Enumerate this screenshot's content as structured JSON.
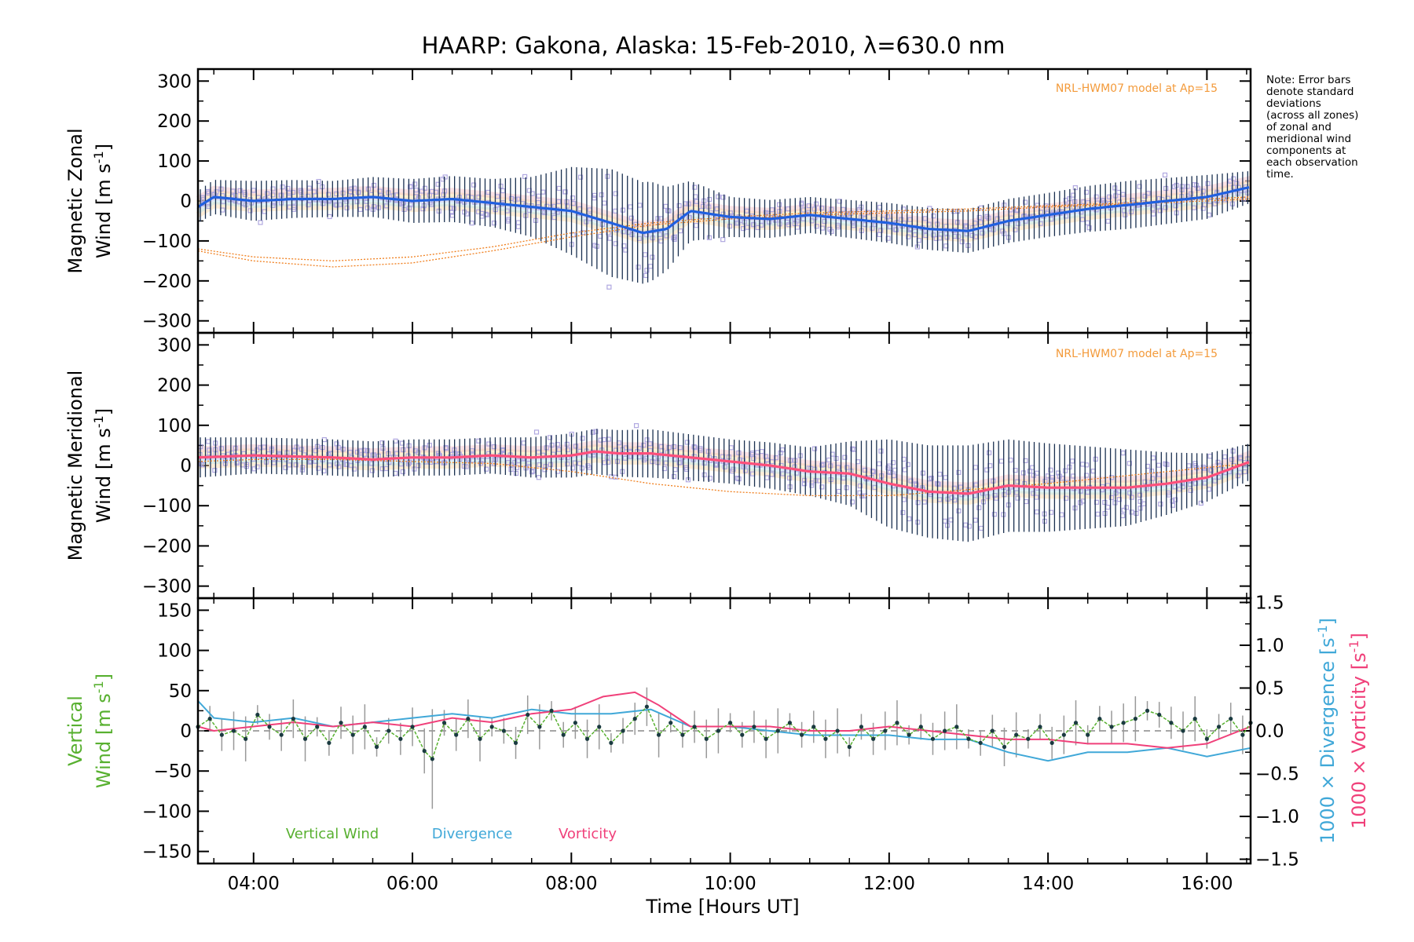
{
  "chart_data": {
    "title": "HAARP: Gakona,  Alaska: 15-Feb-2010, λ=630.0 nm",
    "xlabel": "Time [Hours UT]",
    "xlim": [
      3.3,
      16.55
    ],
    "x_ticks": [
      4,
      6,
      8,
      10,
      12,
      14,
      16
    ],
    "x_tick_labels": [
      "04:00",
      "06:00",
      "08:00",
      "10:00",
      "12:00",
      "14:00",
      "16:00"
    ],
    "note": [
      "Note: Error bars",
      "denote standard",
      "deviations",
      "(across all zones)",
      "of zonal and",
      "meridional wind",
      "components at",
      "each observation",
      "time."
    ],
    "colors": {
      "zonal": "#2060e0",
      "meridional": "#ff4f7b",
      "vertical": "#58b030",
      "divergence": "#40a8d8",
      "vorticity": "#f0407a",
      "model": "#f08020",
      "scatter": "#b0a8e0",
      "errbar": "#1a3050"
    },
    "panels": [
      {
        "id": "zonal",
        "type": "line",
        "ylabel_line1": "Magnetic Zonal",
        "ylabel_line2": "Wind [m s",
        "ylabel_sup": "-1",
        "ylabel_close": "]",
        "ylim": [
          -330,
          330
        ],
        "y_ticks": [
          -300,
          -200,
          -100,
          0,
          100,
          200,
          300
        ],
        "y_tick_labels": [
          "−300",
          "−200",
          "−100",
          "0",
          "100",
          "200",
          "300"
        ],
        "model_label": "NRL-HWM07 model at Ap=15",
        "series": [
          {
            "kind": "mean",
            "x": [
              3.3,
              3.5,
              4.0,
              4.5,
              5.0,
              5.5,
              6.0,
              6.5,
              7.0,
              7.5,
              8.0,
              8.5,
              8.9,
              9.2,
              9.5,
              10.0,
              10.5,
              11.0,
              11.5,
              12.0,
              12.5,
              13.0,
              13.5,
              14.0,
              14.5,
              15.0,
              15.5,
              16.0,
              16.55
            ],
            "y": [
              -15,
              10,
              0,
              5,
              5,
              10,
              0,
              5,
              -5,
              -15,
              -25,
              -55,
              -80,
              -70,
              -25,
              -40,
              -45,
              -35,
              -45,
              -55,
              -70,
              -75,
              -50,
              -35,
              -20,
              -10,
              0,
              10,
              35
            ]
          },
          {
            "kind": "spread",
            "x": [
              3.3,
              4.0,
              5.0,
              6.0,
              7.0,
              7.5,
              8.0,
              8.5,
              9.0,
              9.5,
              10.0,
              11.0,
              12.0,
              13.0,
              14.0,
              15.0,
              16.0,
              16.55
            ],
            "y": [
              40,
              50,
              45,
              55,
              60,
              75,
              110,
              135,
              125,
              75,
              50,
              45,
              50,
              55,
              55,
              60,
              55,
              40
            ]
          },
          {
            "kind": "model",
            "x": [
              3.3,
              4.0,
              5.0,
              6.0,
              7.0,
              8.0,
              9.0,
              10.0,
              11.0,
              12.0,
              13.0,
              14.0,
              15.0,
              16.0,
              16.55
            ],
            "y": [
              -120,
              -140,
              -150,
              -140,
              -115,
              -80,
              -55,
              -40,
              -30,
              -25,
              -20,
              -12,
              -5,
              5,
              10
            ]
          },
          {
            "kind": "model",
            "x": [
              3.3,
              4.0,
              5.0,
              6.0,
              7.0,
              8.0,
              9.0,
              10.0,
              11.0,
              12.0,
              13.0,
              14.0,
              15.0,
              16.0,
              16.55
            ],
            "y": [
              -125,
              -150,
              -165,
              -155,
              -125,
              -90,
              -60,
              -45,
              -35,
              -30,
              -25,
              -15,
              -8,
              0,
              5
            ]
          }
        ]
      },
      {
        "id": "meridional",
        "type": "line",
        "ylabel_line1": "Magnetic Meridional",
        "ylabel_line2": "Wind [m s",
        "ylabel_sup": "-1",
        "ylabel_close": "]",
        "ylim": [
          -330,
          330
        ],
        "y_ticks": [
          -300,
          -200,
          -100,
          0,
          100,
          200,
          300
        ],
        "y_tick_labels": [
          "−300",
          "−200",
          "−100",
          "0",
          "100",
          "200",
          "300"
        ],
        "model_label": "NRL-HWM07 model at Ap=15",
        "series": [
          {
            "kind": "mean",
            "x": [
              3.3,
              4.0,
              5.0,
              5.5,
              6.0,
              6.5,
              7.0,
              7.5,
              8.0,
              8.3,
              8.6,
              9.0,
              9.5,
              10.0,
              10.5,
              11.0,
              11.5,
              12.0,
              12.5,
              13.0,
              13.5,
              14.0,
              14.5,
              15.0,
              15.5,
              16.0,
              16.55
            ],
            "y": [
              20,
              25,
              20,
              15,
              20,
              20,
              25,
              20,
              25,
              35,
              30,
              30,
              20,
              10,
              0,
              -15,
              -20,
              -45,
              -65,
              -70,
              -50,
              -55,
              -55,
              -55,
              -45,
              -30,
              10
            ]
          },
          {
            "kind": "spread",
            "x": [
              3.3,
              4.0,
              5.0,
              6.0,
              7.0,
              8.0,
              9.0,
              10.0,
              11.0,
              11.5,
              12.0,
              13.0,
              14.0,
              15.0,
              16.0,
              16.55
            ],
            "y": [
              50,
              45,
              45,
              45,
              45,
              55,
              60,
              55,
              60,
              80,
              110,
              120,
              110,
              95,
              60,
              45
            ]
          },
          {
            "kind": "model",
            "x": [
              3.3,
              4.0,
              5.0,
              6.0,
              7.0,
              8.0,
              9.0,
              10.0,
              11.0,
              12.0,
              13.0,
              14.0,
              15.0,
              16.0,
              16.55
            ],
            "y": [
              10,
              15,
              15,
              10,
              5,
              -15,
              -45,
              -65,
              -75,
              -75,
              -60,
              -45,
              -25,
              -5,
              5
            ]
          }
        ]
      },
      {
        "id": "vertical",
        "type": "line",
        "ylabel_line1": "Vertical",
        "ylabel_line2": "Wind [m s",
        "ylabel_sup": "-1",
        "ylabel_close": "]",
        "ylim": [
          -165,
          165
        ],
        "y_ticks": [
          -150,
          -100,
          -50,
          0,
          50,
          100,
          150
        ],
        "y_tick_labels": [
          "−150",
          "−100",
          "−50",
          "0",
          "50",
          "100",
          "150"
        ],
        "right_axis": {
          "ylim": [
            -1.55,
            1.55
          ],
          "y_ticks": [
            -1.5,
            -1.0,
            -0.5,
            0.0,
            0.5,
            1.0,
            1.5
          ],
          "y_tick_labels": [
            "−1.5",
            "−1.0",
            "−0.5",
            "0.0",
            "0.5",
            "1.0",
            "1.5"
          ],
          "label1": "1000 × Divergence [s",
          "label2": "1000 × Vorticity [s",
          "sup": "-1",
          "close": "]"
        },
        "legend": [
          "Vertical Wind",
          "Divergence",
          "Vorticity"
        ],
        "series": [
          {
            "name": "Vertical Wind",
            "x": [
              3.3,
              3.45,
              3.6,
              3.75,
              3.9,
              4.05,
              4.2,
              4.35,
              4.5,
              4.65,
              4.8,
              4.95,
              5.1,
              5.25,
              5.4,
              5.55,
              5.7,
              5.85,
              6.0,
              6.15,
              6.25,
              6.4,
              6.55,
              6.7,
              6.85,
              7.0,
              7.15,
              7.3,
              7.45,
              7.6,
              7.75,
              7.9,
              8.05,
              8.2,
              8.35,
              8.5,
              8.65,
              8.8,
              8.95,
              9.1,
              9.25,
              9.4,
              9.55,
              9.7,
              9.85,
              10.0,
              10.15,
              10.3,
              10.45,
              10.6,
              10.75,
              10.9,
              11.05,
              11.2,
              11.35,
              11.5,
              11.65,
              11.8,
              11.95,
              12.1,
              12.25,
              12.4,
              12.55,
              12.7,
              12.85,
              13.0,
              13.15,
              13.3,
              13.45,
              13.6,
              13.75,
              13.9,
              14.05,
              14.2,
              14.35,
              14.5,
              14.65,
              14.8,
              14.95,
              15.1,
              15.25,
              15.4,
              15.55,
              15.7,
              15.85,
              16.0,
              16.15,
              16.3,
              16.45,
              16.55
            ],
            "y": [
              5,
              15,
              -5,
              0,
              -10,
              20,
              5,
              -5,
              15,
              -10,
              5,
              -15,
              10,
              -5,
              5,
              -20,
              0,
              -10,
              5,
              -25,
              -35,
              10,
              -5,
              15,
              -10,
              5,
              0,
              -15,
              20,
              5,
              25,
              -5,
              10,
              -10,
              5,
              -15,
              0,
              15,
              30,
              -5,
              10,
              -5,
              5,
              -10,
              0,
              10,
              -5,
              5,
              -10,
              0,
              10,
              -5,
              5,
              -10,
              0,
              -20,
              5,
              -10,
              0,
              10,
              -5,
              5,
              -10,
              0,
              5,
              -10,
              -15,
              0,
              -20,
              -5,
              -10,
              5,
              -15,
              -5,
              10,
              -5,
              15,
              5,
              10,
              15,
              25,
              20,
              10,
              0,
              15,
              -10,
              5,
              15,
              -5,
              10
            ]
          },
          {
            "name": "Divergence",
            "x": [
              3.3,
              3.5,
              4.0,
              4.5,
              5.0,
              5.5,
              6.0,
              6.5,
              7.0,
              7.5,
              8.0,
              8.5,
              9.0,
              9.5,
              10.0,
              10.5,
              11.0,
              11.5,
              12.0,
              12.5,
              13.0,
              13.5,
              14.0,
              14.5,
              15.0,
              15.5,
              16.0,
              16.55
            ],
            "y": [
              0.35,
              0.15,
              0.1,
              0.15,
              0.05,
              0.1,
              0.15,
              0.2,
              0.15,
              0.25,
              0.2,
              0.2,
              0.25,
              0.05,
              0.05,
              0.0,
              -0.05,
              -0.05,
              -0.05,
              -0.1,
              -0.1,
              -0.25,
              -0.35,
              -0.25,
              -0.25,
              -0.2,
              -0.3,
              -0.2
            ]
          },
          {
            "name": "Vorticity",
            "x": [
              3.3,
              3.5,
              4.0,
              4.5,
              5.0,
              5.5,
              6.0,
              6.5,
              7.0,
              7.5,
              8.0,
              8.4,
              8.8,
              9.1,
              9.5,
              10.0,
              10.5,
              11.0,
              11.5,
              12.0,
              12.5,
              13.0,
              13.5,
              14.0,
              14.5,
              15.0,
              15.5,
              16.0,
              16.55
            ],
            "y": [
              0.05,
              0.0,
              0.05,
              0.1,
              0.05,
              0.1,
              0.05,
              0.15,
              0.1,
              0.2,
              0.25,
              0.4,
              0.45,
              0.3,
              0.05,
              0.05,
              0.05,
              0.0,
              0.0,
              0.05,
              0.0,
              -0.05,
              -0.1,
              -0.1,
              -0.15,
              -0.15,
              -0.2,
              -0.15,
              0.05
            ]
          }
        ]
      }
    ]
  }
}
